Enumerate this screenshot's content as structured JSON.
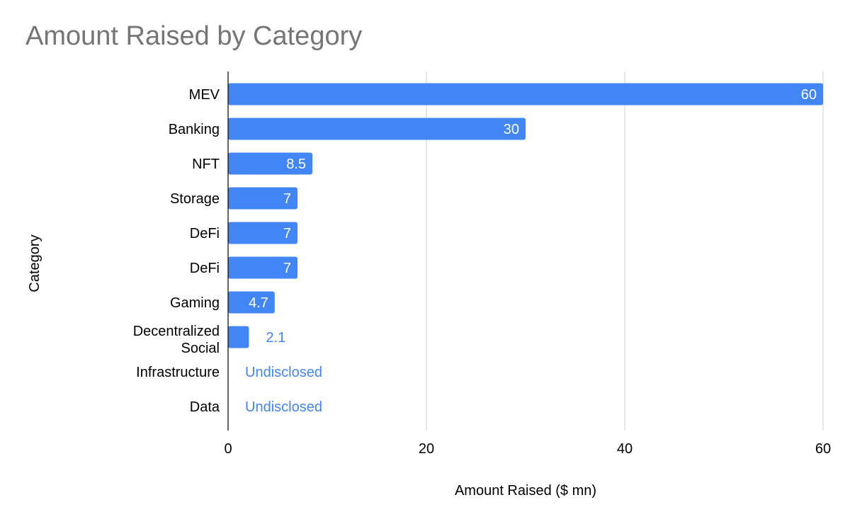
{
  "chart_data": {
    "type": "bar",
    "orientation": "horizontal",
    "title": "Amount Raised by Category",
    "xlabel": "Amount Raised ($ mn)",
    "ylabel": "Category",
    "xlim": [
      0,
      60
    ],
    "xticks": [
      0,
      20,
      40,
      60
    ],
    "grid": true,
    "series": [
      {
        "name": "Amount Raised ($ mn)",
        "color": "#4285f4",
        "categories": [
          "MEV",
          "Banking",
          "NFT",
          "Storage",
          "DeFi",
          "DeFi",
          "Gaming",
          "Decentralized Social",
          "Infrastructure",
          "Data"
        ],
        "values": [
          60,
          30,
          8.5,
          7,
          7,
          7,
          4.7,
          2.1,
          null,
          null
        ],
        "data_labels": [
          "60",
          "30",
          "8.5",
          "7",
          "7",
          "7",
          "4.7",
          "2.1",
          "Undisclosed",
          "Undisclosed"
        ]
      }
    ]
  },
  "colors": {
    "bar": "#4285f4",
    "label_inside": "#ffffff",
    "label_outside": "#4285f4",
    "grid": "#cccccc",
    "axis": "#000000",
    "title": "#757575",
    "text": "#000000"
  }
}
